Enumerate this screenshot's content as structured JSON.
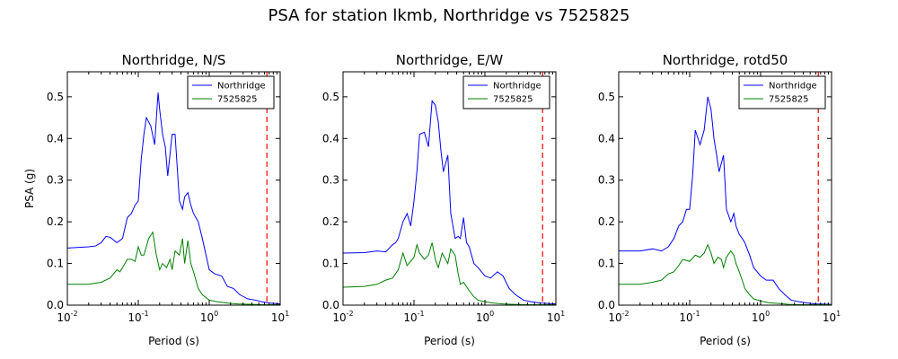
{
  "figure": {
    "title": "PSA for station lkmb, Northridge vs 7525825"
  },
  "colors": {
    "series_1": "#0000ff",
    "series_2": "#008000",
    "reference_line": "#ff0000"
  },
  "chart_data": [
    {
      "type": "line",
      "title": "Northridge, N/S",
      "xlabel": "Period (s)",
      "ylabel": "PSA (g)",
      "xscale": "log",
      "xlim": [
        0.01,
        10
      ],
      "ylim": [
        0,
        0.56
      ],
      "yticks": [
        "0.0",
        "0.1",
        "0.2",
        "0.3",
        "0.4",
        "0.5"
      ],
      "xticks": [
        {
          "base": "10",
          "exp": "-2"
        },
        {
          "base": "10",
          "exp": "-1"
        },
        {
          "base": "10",
          "exp": "0"
        },
        {
          "base": "10",
          "exp": "1"
        }
      ],
      "legend_position": "top-right",
      "vline_x": 6.5,
      "series": [
        {
          "name": "Northridge",
          "x": [
            0.01,
            0.02,
            0.025,
            0.03,
            0.035,
            0.04,
            0.05,
            0.06,
            0.07,
            0.08,
            0.09,
            0.1,
            0.11,
            0.12,
            0.13,
            0.15,
            0.17,
            0.19,
            0.2,
            0.22,
            0.24,
            0.26,
            0.3,
            0.33,
            0.38,
            0.42,
            0.45,
            0.5,
            0.55,
            0.6,
            0.7,
            0.8,
            1.0,
            1.2,
            1.5,
            1.8,
            2.2,
            2.7,
            3.5,
            4.5,
            5.5,
            7,
            10
          ],
          "y": [
            0.137,
            0.14,
            0.142,
            0.15,
            0.165,
            0.163,
            0.15,
            0.16,
            0.21,
            0.22,
            0.24,
            0.25,
            0.35,
            0.41,
            0.45,
            0.43,
            0.385,
            0.51,
            0.47,
            0.41,
            0.38,
            0.31,
            0.41,
            0.41,
            0.25,
            0.23,
            0.26,
            0.27,
            0.24,
            0.22,
            0.2,
            0.16,
            0.085,
            0.075,
            0.07,
            0.045,
            0.04,
            0.025,
            0.015,
            0.012,
            0.008,
            0.005,
            0.003
          ]
        },
        {
          "name": "7525825",
          "x": [
            0.01,
            0.02,
            0.03,
            0.04,
            0.05,
            0.055,
            0.06,
            0.07,
            0.08,
            0.09,
            0.1,
            0.11,
            0.12,
            0.14,
            0.16,
            0.18,
            0.2,
            0.22,
            0.25,
            0.28,
            0.3,
            0.33,
            0.38,
            0.42,
            0.45,
            0.5,
            0.55,
            0.6,
            0.7,
            0.8,
            1.0,
            1.3,
            1.8,
            2.5,
            4,
            6,
            10
          ],
          "y": [
            0.05,
            0.05,
            0.055,
            0.065,
            0.085,
            0.08,
            0.09,
            0.11,
            0.11,
            0.105,
            0.14,
            0.12,
            0.12,
            0.16,
            0.175,
            0.12,
            0.085,
            0.1,
            0.09,
            0.11,
            0.085,
            0.13,
            0.12,
            0.16,
            0.1,
            0.155,
            0.1,
            0.08,
            0.04,
            0.025,
            0.012,
            0.008,
            0.005,
            0.003,
            0.002,
            0.001,
            0.001
          ]
        }
      ]
    },
    {
      "type": "line",
      "title": "Northridge, E/W",
      "xlabel": "Period (s)",
      "ylabel": "",
      "xscale": "log",
      "xlim": [
        0.01,
        10
      ],
      "ylim": [
        0,
        0.56
      ],
      "yticks": [
        "0.0",
        "0.1",
        "0.2",
        "0.3",
        "0.4",
        "0.5"
      ],
      "xticks": [
        {
          "base": "10",
          "exp": "-2"
        },
        {
          "base": "10",
          "exp": "-1"
        },
        {
          "base": "10",
          "exp": "0"
        },
        {
          "base": "10",
          "exp": "1"
        }
      ],
      "legend_position": "top-right",
      "vline_x": 6.5,
      "series": [
        {
          "name": "Northridge",
          "x": [
            0.01,
            0.02,
            0.03,
            0.04,
            0.05,
            0.055,
            0.06,
            0.07,
            0.08,
            0.09,
            0.1,
            0.11,
            0.12,
            0.14,
            0.16,
            0.18,
            0.2,
            0.22,
            0.24,
            0.26,
            0.3,
            0.33,
            0.38,
            0.42,
            0.45,
            0.5,
            0.55,
            0.6,
            0.7,
            0.8,
            1.0,
            1.2,
            1.5,
            1.8,
            2.2,
            2.7,
            3.5,
            4.5,
            6,
            10
          ],
          "y": [
            0.125,
            0.126,
            0.13,
            0.128,
            0.145,
            0.15,
            0.16,
            0.2,
            0.22,
            0.19,
            0.25,
            0.32,
            0.41,
            0.415,
            0.38,
            0.49,
            0.48,
            0.44,
            0.37,
            0.32,
            0.36,
            0.22,
            0.16,
            0.165,
            0.16,
            0.21,
            0.15,
            0.14,
            0.1,
            0.09,
            0.07,
            0.065,
            0.08,
            0.07,
            0.04,
            0.025,
            0.012,
            0.008,
            0.005,
            0.003
          ]
        },
        {
          "name": "7525825",
          "x": [
            0.01,
            0.02,
            0.03,
            0.04,
            0.05,
            0.06,
            0.07,
            0.08,
            0.1,
            0.11,
            0.12,
            0.14,
            0.16,
            0.18,
            0.2,
            0.22,
            0.25,
            0.3,
            0.33,
            0.38,
            0.42,
            0.45,
            0.5,
            0.6,
            0.7,
            0.8,
            1.0,
            1.3,
            1.8,
            2.5,
            4,
            6,
            10
          ],
          "y": [
            0.043,
            0.045,
            0.05,
            0.06,
            0.065,
            0.085,
            0.125,
            0.095,
            0.115,
            0.145,
            0.125,
            0.11,
            0.12,
            0.15,
            0.11,
            0.09,
            0.125,
            0.1,
            0.135,
            0.12,
            0.075,
            0.05,
            0.055,
            0.035,
            0.02,
            0.012,
            0.008,
            0.005,
            0.003,
            0.002,
            0.001,
            0.001,
            0.001
          ]
        }
      ]
    },
    {
      "type": "line",
      "title": "Northridge, rotd50",
      "xlabel": "Period (s)",
      "ylabel": "",
      "xscale": "log",
      "xlim": [
        0.01,
        10
      ],
      "ylim": [
        0,
        0.56
      ],
      "yticks": [
        "0.0",
        "0.1",
        "0.2",
        "0.3",
        "0.4",
        "0.5"
      ],
      "xticks": [
        {
          "base": "10",
          "exp": "-2"
        },
        {
          "base": "10",
          "exp": "-1"
        },
        {
          "base": "10",
          "exp": "0"
        },
        {
          "base": "10",
          "exp": "1"
        }
      ],
      "legend_position": "top-right",
      "vline_x": 6.5,
      "series": [
        {
          "name": "Northridge",
          "x": [
            0.01,
            0.02,
            0.03,
            0.04,
            0.05,
            0.06,
            0.07,
            0.08,
            0.09,
            0.1,
            0.11,
            0.12,
            0.14,
            0.16,
            0.18,
            0.2,
            0.22,
            0.24,
            0.26,
            0.3,
            0.33,
            0.38,
            0.42,
            0.45,
            0.5,
            0.55,
            0.6,
            0.7,
            0.8,
            1.0,
            1.2,
            1.5,
            1.8,
            2.2,
            2.7,
            3.5,
            4.5,
            6,
            10
          ],
          "y": [
            0.13,
            0.13,
            0.135,
            0.13,
            0.14,
            0.16,
            0.19,
            0.2,
            0.23,
            0.23,
            0.31,
            0.42,
            0.385,
            0.42,
            0.5,
            0.47,
            0.4,
            0.36,
            0.32,
            0.36,
            0.23,
            0.2,
            0.22,
            0.19,
            0.17,
            0.16,
            0.15,
            0.12,
            0.09,
            0.07,
            0.06,
            0.06,
            0.04,
            0.025,
            0.012,
            0.008,
            0.005,
            0.003,
            0.002
          ]
        },
        {
          "name": "7525825",
          "x": [
            0.01,
            0.02,
            0.03,
            0.04,
            0.05,
            0.06,
            0.07,
            0.08,
            0.1,
            0.12,
            0.14,
            0.16,
            0.18,
            0.2,
            0.22,
            0.25,
            0.28,
            0.3,
            0.33,
            0.38,
            0.42,
            0.45,
            0.5,
            0.55,
            0.6,
            0.7,
            0.8,
            1.0,
            1.3,
            1.8,
            2.5,
            4,
            6,
            10
          ],
          "y": [
            0.05,
            0.05,
            0.055,
            0.06,
            0.075,
            0.08,
            0.095,
            0.11,
            0.105,
            0.12,
            0.115,
            0.125,
            0.145,
            0.125,
            0.1,
            0.115,
            0.11,
            0.09,
            0.115,
            0.13,
            0.12,
            0.1,
            0.08,
            0.06,
            0.04,
            0.025,
            0.015,
            0.01,
            0.006,
            0.004,
            0.002,
            0.001,
            0.001,
            0.001
          ]
        }
      ]
    }
  ]
}
